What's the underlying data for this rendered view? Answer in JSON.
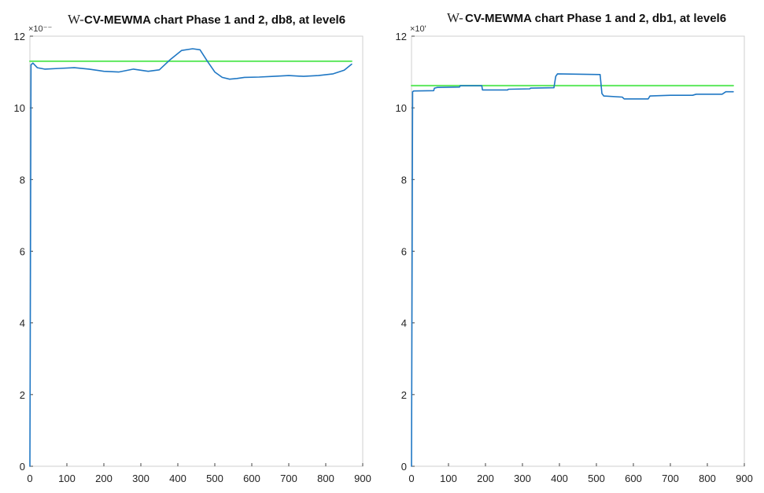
{
  "figure": {
    "charts": [
      {
        "title_prefix": "W-",
        "title": "CV-MEWMA chart Phase 1 and 2, db8, at level6",
        "exponent_label": "×10⁻⁻",
        "xlim": [
          0,
          900
        ],
        "ylim": [
          0,
          12
        ],
        "xticks": [
          "0",
          "100",
          "200",
          "300",
          "400",
          "500",
          "600",
          "700",
          "800",
          "900"
        ],
        "yticks": [
          "0",
          "2",
          "4",
          "6",
          "8",
          "10",
          "12"
        ]
      },
      {
        "title_prefix": "W-",
        "title": "CV-MEWMA chart Phase 1 and 2, db1, at level6",
        "exponent_label": "×10'",
        "xlim": [
          0,
          900
        ],
        "ylim": [
          0,
          12
        ],
        "xticks": [
          "0",
          "100",
          "200",
          "300",
          "400",
          "500",
          "600",
          "700",
          "800",
          "900"
        ],
        "yticks": [
          "0",
          "2",
          "4",
          "6",
          "8",
          "10",
          "12"
        ]
      }
    ]
  },
  "chart_data": [
    {
      "type": "line",
      "title": "CV-MEWMA chart Phase 1 and 2, db8, at level6",
      "xlabel": "",
      "ylabel": "",
      "xlim": [
        0,
        900
      ],
      "ylim": [
        0,
        12
      ],
      "grid": false,
      "colors": {
        "statistic": "#1f77c4",
        "limit": "#5ee85e"
      },
      "series": [
        {
          "role": "statistic",
          "x": [
            0,
            3,
            8,
            20,
            40,
            80,
            120,
            160,
            200,
            240,
            280,
            320,
            350,
            380,
            410,
            440,
            460,
            480,
            500,
            520,
            540,
            560,
            580,
            620,
            660,
            700,
            740,
            780,
            820,
            850,
            870
          ],
          "y": [
            0,
            11.2,
            11.25,
            11.12,
            11.08,
            11.1,
            11.12,
            11.08,
            11.02,
            11.0,
            11.08,
            11.02,
            11.06,
            11.35,
            11.6,
            11.65,
            11.62,
            11.3,
            11.0,
            10.85,
            10.8,
            10.82,
            10.85,
            10.86,
            10.88,
            10.9,
            10.88,
            10.9,
            10.95,
            11.05,
            11.22
          ]
        },
        {
          "role": "limit",
          "x": [
            0,
            870
          ],
          "y": [
            11.3,
            11.3
          ]
        }
      ]
    },
    {
      "type": "line",
      "title": "CV-MEWMA chart Phase 1 and 2, db1, at level6",
      "xlabel": "",
      "ylabel": "",
      "xlim": [
        0,
        900
      ],
      "ylim": [
        0,
        12
      ],
      "grid": false,
      "colors": {
        "statistic": "#1f77c4",
        "limit": "#5ee85e"
      },
      "series": [
        {
          "role": "statistic",
          "x": [
            0,
            3,
            6,
            60,
            62,
            70,
            130,
            132,
            190,
            192,
            260,
            262,
            320,
            322,
            385,
            390,
            395,
            510,
            515,
            520,
            570,
            575,
            640,
            645,
            700,
            760,
            770,
            840,
            850,
            870
          ],
          "y": [
            0,
            10.45,
            10.47,
            10.48,
            10.55,
            10.57,
            10.58,
            10.62,
            10.62,
            10.5,
            10.5,
            10.52,
            10.53,
            10.55,
            10.56,
            10.88,
            10.95,
            10.93,
            10.4,
            10.33,
            10.3,
            10.25,
            10.25,
            10.33,
            10.35,
            10.35,
            10.38,
            10.38,
            10.45,
            10.45
          ]
        },
        {
          "role": "limit",
          "x": [
            0,
            870
          ],
          "y": [
            10.62,
            10.62
          ]
        }
      ]
    }
  ]
}
